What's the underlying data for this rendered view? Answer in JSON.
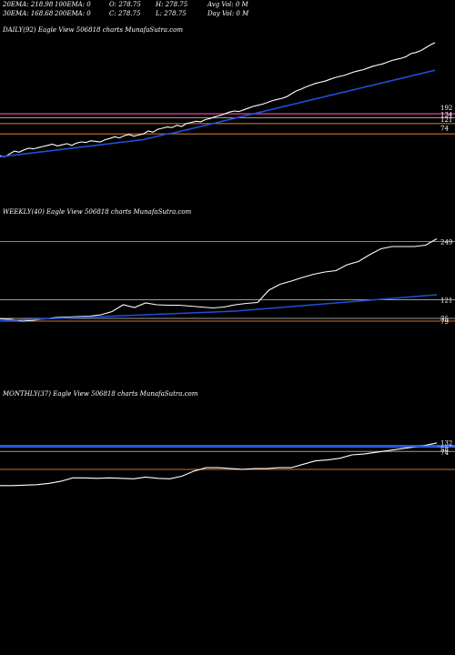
{
  "stats": {
    "ema20": "20EMA: 218.98",
    "ema100": "100EMA: 0",
    "open": "O: 278.75",
    "high": "H: 278.75",
    "avgvol": "Avg Vol: 0  M",
    "ema30": "30EMA: 168.68",
    "ema200": "200EMA: 0",
    "close": "C: 278.75",
    "low": "L: 278.75",
    "dayvol": "Day Vol: 0  M"
  },
  "colors": {
    "price": "#ffffff",
    "ema": "#1f4fd8",
    "level_orange": "#c87533",
    "level_pink": "#d04090",
    "level_blue": "#3a6bff",
    "grid_gray": "#9a9a9a"
  },
  "chart_data": [
    {
      "type": "line",
      "title": "DAILY(92) Eagle  View  506818 charts MunafaSutra.com",
      "tick_labels": [
        "192",
        "134",
        "121",
        "74"
      ],
      "series": [
        {
          "values": [
            62,
            60,
            65,
            70,
            68,
            72,
            75,
            74,
            76,
            78,
            80,
            82,
            79,
            81,
            83,
            80,
            84,
            86,
            85,
            88,
            87,
            86,
            90,
            92,
            95,
            93,
            97,
            99,
            96,
            98,
            100,
            105,
            103,
            108,
            110,
            112,
            111,
            115,
            113,
            118,
            120,
            122,
            121,
            125,
            127,
            130,
            132,
            135,
            138,
            140,
            139,
            142,
            145,
            148,
            150,
            152,
            155,
            158,
            160,
            162,
            165,
            170,
            175,
            178,
            182,
            185,
            188,
            190,
            192,
            195,
            198,
            200,
            202,
            205,
            208,
            210,
            212,
            215,
            218,
            220,
            222,
            225,
            228,
            230,
            232,
            235,
            240,
            242,
            245,
            250,
            255,
            259
          ]
        },
        {
          "values": [
            60,
            61,
            62,
            63,
            64,
            65,
            66,
            67,
            68,
            69,
            70,
            71,
            72,
            73,
            74,
            75,
            76,
            77,
            78,
            79,
            80,
            81,
            82,
            83,
            84,
            85,
            86,
            87,
            88,
            89,
            90,
            92,
            94,
            96,
            98,
            100,
            101,
            103,
            105,
            107,
            109,
            111,
            113,
            115,
            117,
            119,
            121,
            123,
            125,
            127,
            129,
            131,
            133,
            135,
            137,
            139,
            141,
            143,
            145,
            147,
            149,
            151,
            153,
            155,
            157,
            159,
            161,
            163,
            165,
            167,
            169,
            171,
            173,
            175,
            177,
            179,
            181,
            183,
            185,
            187,
            189,
            191,
            193,
            195,
            197,
            199,
            201,
            203,
            205,
            207,
            209,
            211
          ]
        }
      ]
    },
    {
      "type": "line",
      "title": "WEEKLY(40) Eagle  View  506818 charts MunafaSutra.com",
      "tick_labels": [
        "249",
        "121",
        "75",
        "79"
      ],
      "series": [
        {
          "values": [
            79,
            78,
            74,
            76,
            79,
            82,
            83,
            84,
            85,
            88,
            95,
            110,
            104,
            114,
            110,
            109,
            109,
            107,
            105,
            103,
            105,
            110,
            113,
            115,
            142,
            155,
            162,
            170,
            177,
            182,
            185,
            198,
            205,
            220,
            233,
            238,
            238,
            238,
            241,
            255
          ]
        },
        {
          "values": [
            75,
            76,
            77,
            78,
            79,
            80,
            81,
            82,
            83,
            84,
            85,
            86,
            87,
            88,
            89,
            90,
            91,
            92,
            93,
            94,
            95,
            96,
            98,
            100,
            102,
            104,
            106,
            108,
            110,
            112,
            114,
            116,
            118,
            120,
            122,
            124,
            126,
            128,
            130,
            132
          ]
        }
      ]
    },
    {
      "type": "line",
      "title": "MONTHLY(37) Eagle  View  506818 charts MunafaSutra.com",
      "tick_labels": [
        "132",
        "58",
        "74"
      ],
      "series": [
        {
          "values": [
            40,
            40,
            41,
            42,
            45,
            50,
            58,
            58,
            57,
            58,
            57,
            56,
            60,
            57,
            56,
            62,
            74,
            82,
            82,
            80,
            78,
            80,
            80,
            82,
            82,
            90,
            98,
            100,
            104,
            112,
            114,
            118,
            122,
            126,
            130,
            134,
            140
          ]
        },
        {
          "values": [
            132,
            132,
            132,
            132,
            132,
            132,
            132,
            132,
            132,
            132,
            132,
            132,
            132,
            132,
            132,
            132,
            132,
            132,
            132,
            132,
            132,
            132,
            132,
            132,
            132,
            132,
            132,
            132,
            132,
            132,
            132,
            132,
            132,
            132,
            132,
            132,
            132
          ]
        }
      ]
    }
  ]
}
